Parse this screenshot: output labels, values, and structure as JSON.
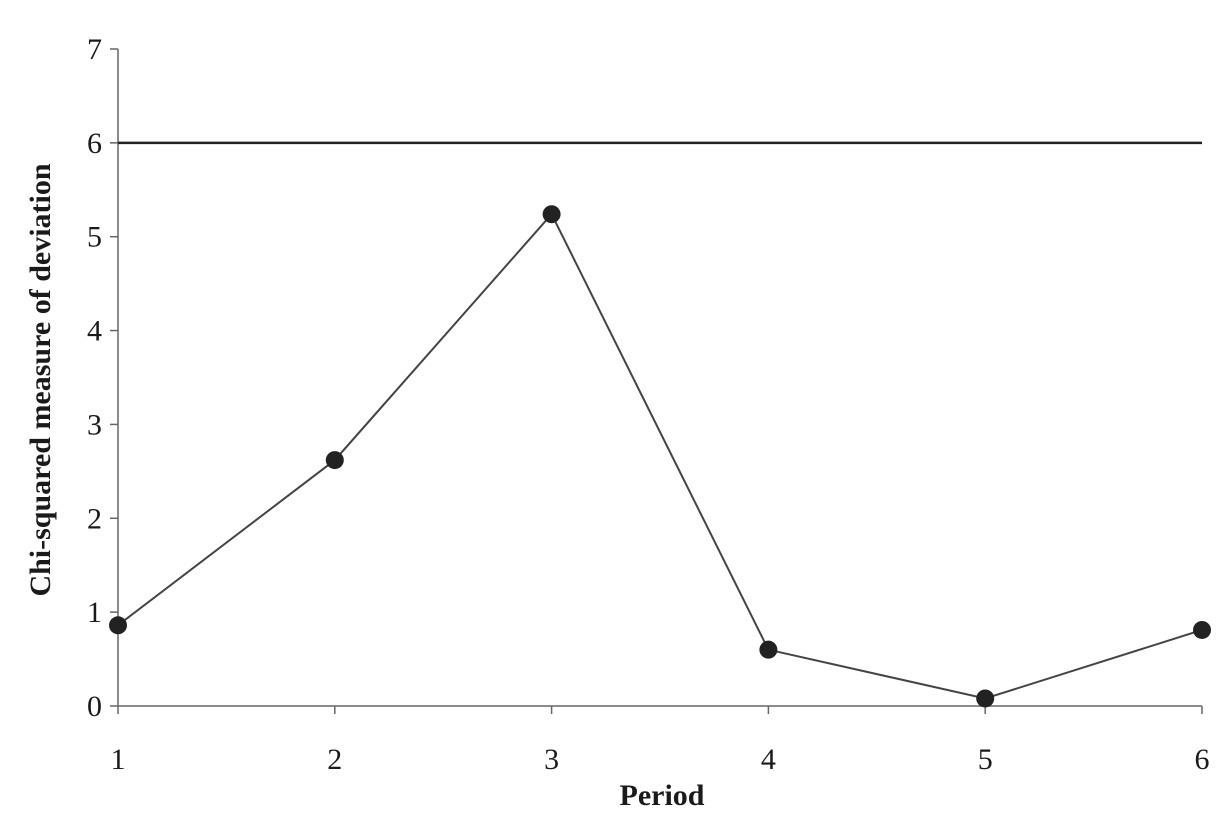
{
  "chart_data": {
    "type": "line",
    "title": "",
    "xlabel": "Period",
    "ylabel": "Chi-squared measure of deviation",
    "x": [
      1,
      2,
      3,
      4,
      5,
      6
    ],
    "xticks": [
      "1",
      "2",
      "3",
      "4",
      "5",
      "6"
    ],
    "yticks": [
      "0",
      "1",
      "2",
      "3",
      "4",
      "5",
      "6",
      "7"
    ],
    "xlim": [
      1,
      6
    ],
    "ylim": [
      0,
      7
    ],
    "grid": false,
    "legend": "none",
    "series": [
      {
        "values": [
          0.86,
          2.62,
          5.24,
          0.6,
          0.08,
          0.81
        ],
        "marker": "circle",
        "color": "#222222"
      }
    ],
    "reference_lines": [
      {
        "y": 6,
        "color": "#222222"
      }
    ]
  }
}
